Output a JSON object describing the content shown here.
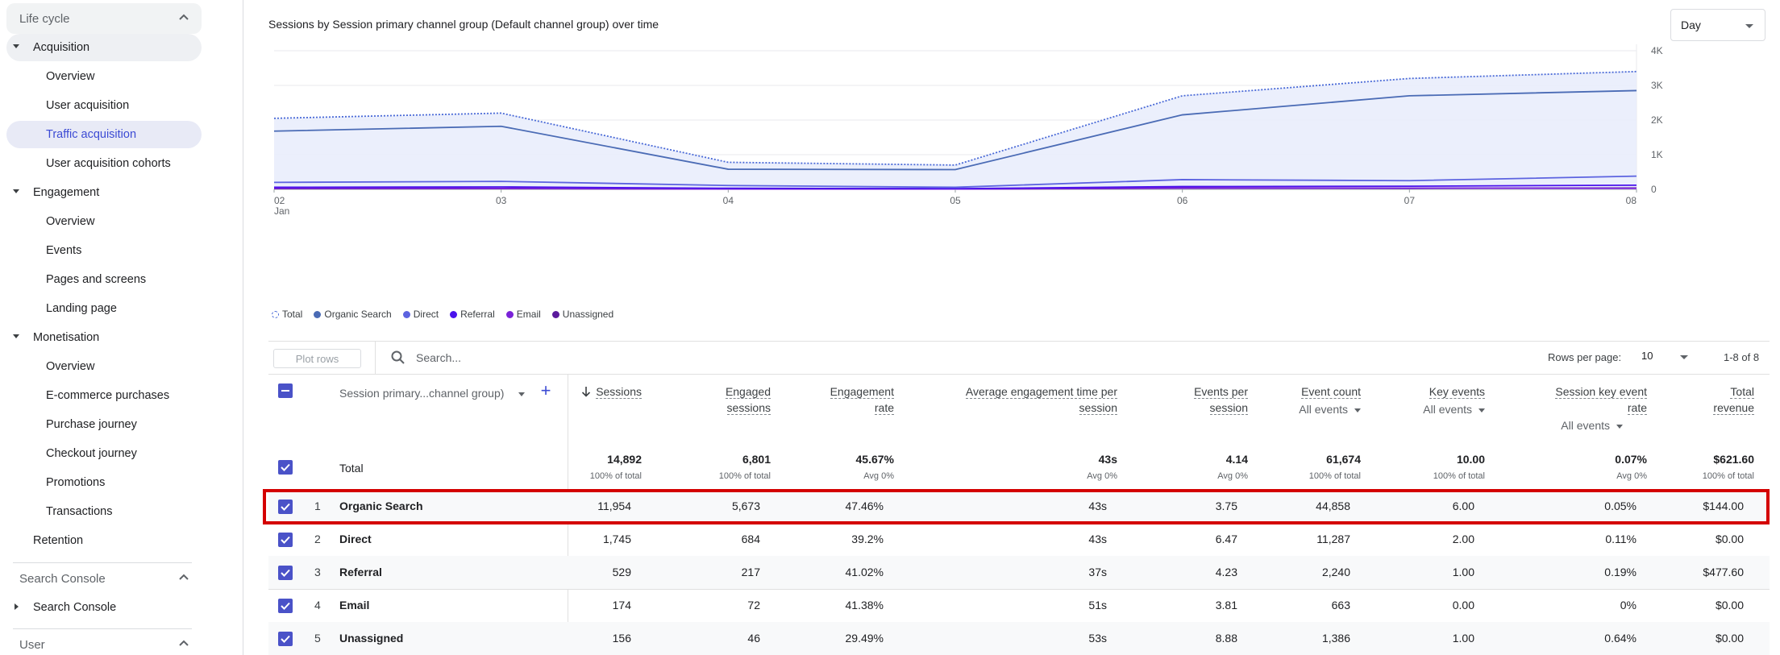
{
  "sidebar": {
    "sections": [
      {
        "label": "Life cycle"
      },
      {
        "label": "Search Console"
      },
      {
        "label": "User"
      }
    ],
    "items": [
      {
        "label": "Acquisition"
      },
      {
        "label": "Overview"
      },
      {
        "label": "User acquisition"
      },
      {
        "label": "Traffic acquisition"
      },
      {
        "label": "User acquisition cohorts"
      },
      {
        "label": "Engagement"
      },
      {
        "label": "Overview"
      },
      {
        "label": "Events"
      },
      {
        "label": "Pages and screens"
      },
      {
        "label": "Landing page"
      },
      {
        "label": "Monetisation"
      },
      {
        "label": "Overview"
      },
      {
        "label": "E-commerce purchases"
      },
      {
        "label": "Purchase journey"
      },
      {
        "label": "Checkout journey"
      },
      {
        "label": "Promotions"
      },
      {
        "label": "Transactions"
      },
      {
        "label": "Retention"
      },
      {
        "label": "Search Console"
      }
    ]
  },
  "chart": {
    "title": "Sessions by Session primary channel group (Default channel group) over time",
    "interval": "Day"
  },
  "chart_data": {
    "type": "line",
    "x": [
      "02",
      "03",
      "04",
      "05",
      "06",
      "07",
      "08"
    ],
    "x_sublabel": "Jan",
    "y_ticks": [
      "0",
      "1K",
      "2K",
      "3K",
      "4K"
    ],
    "ylim": [
      0,
      4000
    ],
    "series": [
      {
        "name": "Total",
        "color": "#4a6ad7",
        "style": "dotted",
        "values": [
          2050,
          2200,
          780,
          700,
          2700,
          3200,
          3400
        ]
      },
      {
        "name": "Organic Search",
        "color": "#4a6bb5",
        "values": [
          1680,
          1820,
          580,
          570,
          2150,
          2700,
          2850
        ]
      },
      {
        "name": "Direct",
        "color": "#5c63e0",
        "values": [
          200,
          230,
          110,
          60,
          280,
          250,
          380
        ]
      },
      {
        "name": "Referral",
        "color": "#4a12ec",
        "values": [
          60,
          70,
          30,
          20,
          80,
          90,
          120
        ]
      },
      {
        "name": "Email",
        "color": "#7a22d8",
        "values": [
          30,
          25,
          10,
          8,
          40,
          35,
          26
        ]
      },
      {
        "name": "Unassigned",
        "color": "#5b1a9c",
        "values": [
          20,
          22,
          10,
          8,
          30,
          28,
          38
        ]
      }
    ],
    "legend_placement": "bottom-left",
    "grid": true
  },
  "table": {
    "plot_rows_label": "Plot rows",
    "search_placeholder": "Search...",
    "rows_per_page_label": "Rows per page:",
    "rows_per_page": "10",
    "range": "1-8 of 8",
    "dimension_header": "Session primary...channel group)",
    "total_label": "Total",
    "columns": [
      {
        "line1": "Sessions",
        "line2": ""
      },
      {
        "line1": "Engaged",
        "line2": "sessions"
      },
      {
        "line1": "Engagement",
        "line2": "rate"
      },
      {
        "line1": "Average engagement time per",
        "line2": "session"
      },
      {
        "line1": "Events per",
        "line2": "session"
      },
      {
        "line1": "Event count",
        "line2": ""
      },
      {
        "line1": "Key events",
        "line2": ""
      },
      {
        "line1": "Session key event",
        "line2": "rate"
      },
      {
        "line1": "Total",
        "line2": "revenue"
      }
    ],
    "all_events_label": "All events",
    "totals": [
      {
        "value": "14,892",
        "sub": "100% of total"
      },
      {
        "value": "6,801",
        "sub": "100% of total"
      },
      {
        "value": "45.67%",
        "sub": "Avg 0%"
      },
      {
        "value": "43s",
        "sub": "Avg 0%"
      },
      {
        "value": "4.14",
        "sub": "Avg 0%"
      },
      {
        "value": "61,674",
        "sub": "100% of total"
      },
      {
        "value": "10.00",
        "sub": "100% of total"
      },
      {
        "value": "0.07%",
        "sub": "Avg 0%"
      },
      {
        "value": "$621.60",
        "sub": "100% of total"
      }
    ],
    "rows": [
      {
        "idx": "1",
        "name": "Organic Search",
        "cells": [
          "11,954",
          "5,673",
          "47.46%",
          "43s",
          "3.75",
          "44,858",
          "6.00",
          "0.05%",
          "$144.00"
        ]
      },
      {
        "idx": "2",
        "name": "Direct",
        "cells": [
          "1,745",
          "684",
          "39.2%",
          "43s",
          "6.47",
          "11,287",
          "2.00",
          "0.11%",
          "$0.00"
        ]
      },
      {
        "idx": "3",
        "name": "Referral",
        "cells": [
          "529",
          "217",
          "41.02%",
          "37s",
          "4.23",
          "2,240",
          "1.00",
          "0.19%",
          "$477.60"
        ]
      },
      {
        "idx": "4",
        "name": "Email",
        "cells": [
          "174",
          "72",
          "41.38%",
          "51s",
          "3.81",
          "663",
          "0.00",
          "0%",
          "$0.00"
        ]
      },
      {
        "idx": "5",
        "name": "Unassigned",
        "cells": [
          "156",
          "46",
          "29.49%",
          "53s",
          "8.88",
          "1,386",
          "1.00",
          "0.64%",
          "$0.00"
        ]
      }
    ]
  }
}
